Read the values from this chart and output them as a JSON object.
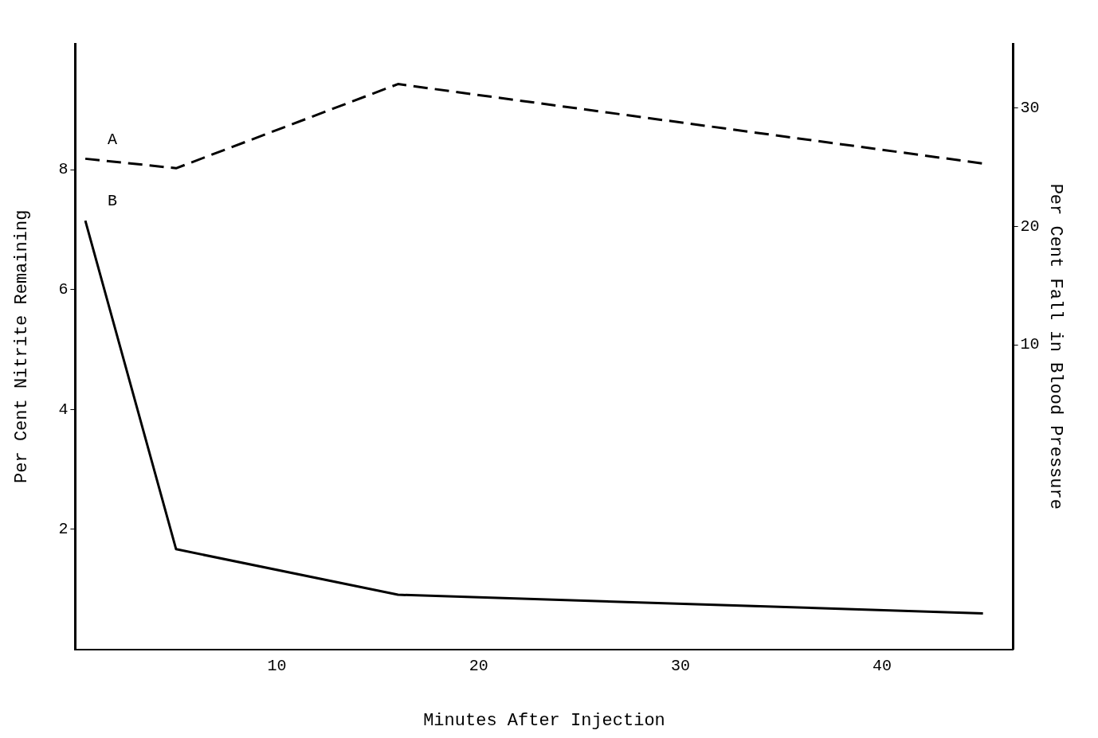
{
  "chart_data": {
    "type": "line",
    "xlabel": "Minutes After Injection",
    "ylabel": "Per Cent Nitrite Remaining",
    "y2label": "Per Cent Fall in Blood Pressure",
    "x": [
      0.5,
      5,
      16,
      45
    ],
    "series": [
      {
        "name": "A",
        "color": "#000000",
        "values": [
          25.7,
          24.9,
          32,
          25.3
        ],
        "axis": "y2",
        "line_style": "dashed"
      },
      {
        "name": "B",
        "color": "#000000",
        "values": [
          7.15,
          1.67,
          0.91,
          0.6
        ],
        "line_style": "solid"
      }
    ],
    "xlim": [
      0,
      46.5
    ],
    "xticks": [
      10,
      20,
      30,
      40
    ],
    "ylim": [
      0,
      10.1
    ],
    "yticks": [
      2,
      4,
      6,
      8
    ],
    "y2lim": [
      -15.7,
      35.4
    ],
    "y2ticks": [
      10,
      20,
      30
    ],
    "grid": false,
    "legend": false,
    "marker": "none"
  }
}
